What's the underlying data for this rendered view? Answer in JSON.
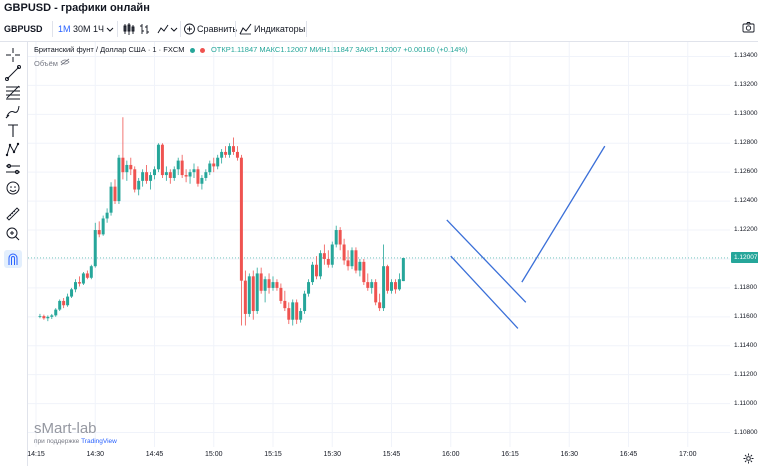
{
  "app": {
    "title": "GBPUSD - графики онлайн"
  },
  "toolbar": {
    "symbol": "GBPUSD",
    "intervals": [
      "1М",
      "30М",
      "1Ч"
    ],
    "active_interval": "1М",
    "compare_label": "Сравнить",
    "indicators_label": "Индикаторы"
  },
  "legend": {
    "instrument": "Британский фунт / Доллар США · 1 · FXCM",
    "open": "ОТКР1.11847",
    "high": "МАКС1.12007",
    "low": "МИН1.11847",
    "close": "ЗАКР1.12007",
    "change": "+0.00160 (+0.14%)",
    "volume_label": "Объём"
  },
  "branding": {
    "watermark": "sMart-lab",
    "powered_by": "при поддержке",
    "powered_brand": "TradingView"
  },
  "colors": {
    "up": "#26a69a",
    "down": "#ef5350",
    "trendline": "#3a6fd8",
    "price_tag": "#26a69a"
  },
  "chart_data": {
    "type": "candlestick",
    "x_axis": {
      "tick_labels": [
        "14:15",
        "14:30",
        "14:45",
        "15:00",
        "15:15",
        "15:30",
        "15:45",
        "16:00",
        "16:15",
        "16:30",
        "16:45",
        "17:00"
      ]
    },
    "y_axis": {
      "tick_labels": [
        "1.13400",
        "1.13200",
        "1.13000",
        "1.12800",
        "1.12600",
        "1.12400",
        "1.12200",
        "1.12000",
        "1.11800",
        "1.11600",
        "1.11400",
        "1.11200",
        "1.11000",
        "1.10800"
      ],
      "range": [
        1.107,
        1.135
      ]
    },
    "current_price": "1.12007",
    "candle_seconds": 60,
    "candles_start": "14:16",
    "candles": [
      [
        1.116,
        1.1162,
        1.1159,
        1.11605
      ],
      [
        1.11605,
        1.11615,
        1.1158,
        1.1159
      ],
      [
        1.1159,
        1.1161,
        1.1157,
        1.116
      ],
      [
        1.116,
        1.1162,
        1.11585,
        1.1161
      ],
      [
        1.1161,
        1.1166,
        1.116,
        1.1165
      ],
      [
        1.1165,
        1.1172,
        1.1164,
        1.1171
      ],
      [
        1.1171,
        1.1173,
        1.1166,
        1.1168
      ],
      [
        1.1168,
        1.1176,
        1.1167,
        1.1174
      ],
      [
        1.1174,
        1.118,
        1.1173,
        1.1179
      ],
      [
        1.1179,
        1.1186,
        1.1177,
        1.1184
      ],
      [
        1.1184,
        1.1188,
        1.1181,
        1.1183
      ],
      [
        1.1183,
        1.1191,
        1.1182,
        1.119
      ],
      [
        1.119,
        1.1192,
        1.1186,
        1.1187
      ],
      [
        1.1187,
        1.1196,
        1.1186,
        1.1195
      ],
      [
        1.1195,
        1.1225,
        1.1194,
        1.122
      ],
      [
        1.122,
        1.1226,
        1.1215,
        1.1217
      ],
      [
        1.1217,
        1.123,
        1.1216,
        1.1228
      ],
      [
        1.1228,
        1.1235,
        1.1225,
        1.1232
      ],
      [
        1.1232,
        1.1253,
        1.123,
        1.125
      ],
      [
        1.125,
        1.1255,
        1.1238,
        1.124
      ],
      [
        1.124,
        1.1272,
        1.1238,
        1.127
      ],
      [
        1.127,
        1.1298,
        1.1255,
        1.126
      ],
      [
        1.126,
        1.1268,
        1.1254,
        1.1265
      ],
      [
        1.1265,
        1.127,
        1.1258,
        1.1262
      ],
      [
        1.1262,
        1.1264,
        1.1246,
        1.1248
      ],
      [
        1.1248,
        1.1256,
        1.1244,
        1.1254
      ],
      [
        1.1254,
        1.1262,
        1.125,
        1.126
      ],
      [
        1.126,
        1.1265,
        1.1252,
        1.1254
      ],
      [
        1.1254,
        1.126,
        1.1248,
        1.1258
      ],
      [
        1.1258,
        1.1264,
        1.1255,
        1.1262
      ],
      [
        1.1262,
        1.128,
        1.126,
        1.1279
      ],
      [
        1.1279,
        1.128,
        1.1256,
        1.1258
      ],
      [
        1.1258,
        1.1264,
        1.1254,
        1.126
      ],
      [
        1.126,
        1.1262,
        1.1252,
        1.1256
      ],
      [
        1.1256,
        1.1264,
        1.1254,
        1.1262
      ],
      [
        1.1262,
        1.127,
        1.1258,
        1.1268
      ],
      [
        1.1268,
        1.1272,
        1.1256,
        1.1258
      ],
      [
        1.1258,
        1.1262,
        1.1253,
        1.1257
      ],
      [
        1.1257,
        1.1262,
        1.1252,
        1.126
      ],
      [
        1.126,
        1.1266,
        1.1256,
        1.1262
      ],
      [
        1.1262,
        1.1264,
        1.125,
        1.1252
      ],
      [
        1.1252,
        1.1258,
        1.1248,
        1.1256
      ],
      [
        1.1256,
        1.1262,
        1.1254,
        1.126
      ],
      [
        1.126,
        1.1268,
        1.1258,
        1.1266
      ],
      [
        1.1266,
        1.127,
        1.126,
        1.1264
      ],
      [
        1.1264,
        1.1272,
        1.1262,
        1.127
      ],
      [
        1.127,
        1.1276,
        1.1266,
        1.1274
      ],
      [
        1.1274,
        1.1278,
        1.127,
        1.1272
      ],
      [
        1.1272,
        1.128,
        1.127,
        1.1278
      ],
      [
        1.1278,
        1.1284,
        1.1272,
        1.1274
      ],
      [
        1.1274,
        1.1278,
        1.1268,
        1.127
      ],
      [
        1.127,
        1.1272,
        1.1154,
        1.1185
      ],
      [
        1.1185,
        1.1192,
        1.1154,
        1.1162
      ],
      [
        1.1162,
        1.119,
        1.116,
        1.1188
      ],
      [
        1.1188,
        1.1192,
        1.1158,
        1.1164
      ],
      [
        1.1164,
        1.1194,
        1.1162,
        1.119
      ],
      [
        1.119,
        1.1194,
        1.1176,
        1.1178
      ],
      [
        1.1178,
        1.1188,
        1.117,
        1.1186
      ],
      [
        1.1186,
        1.119,
        1.1176,
        1.118
      ],
      [
        1.118,
        1.1188,
        1.1178,
        1.1184
      ],
      [
        1.1184,
        1.1186,
        1.1178,
        1.118
      ],
      [
        1.118,
        1.1183,
        1.1169,
        1.1171
      ],
      [
        1.1171,
        1.1178,
        1.1164,
        1.1166
      ],
      [
        1.1166,
        1.117,
        1.1155,
        1.1158
      ],
      [
        1.1158,
        1.1172,
        1.1154,
        1.117
      ],
      [
        1.117,
        1.1172,
        1.1155,
        1.1158
      ],
      [
        1.1158,
        1.1166,
        1.1156,
        1.1164
      ],
      [
        1.1164,
        1.1178,
        1.1162,
        1.1176
      ],
      [
        1.1176,
        1.1186,
        1.1174,
        1.1184
      ],
      [
        1.1184,
        1.1198,
        1.1182,
        1.1196
      ],
      [
        1.1196,
        1.1202,
        1.1186,
        1.1188
      ],
      [
        1.1188,
        1.1206,
        1.1186,
        1.1204
      ],
      [
        1.1204,
        1.121,
        1.1196,
        1.12
      ],
      [
        1.12,
        1.1206,
        1.1194,
        1.1196
      ],
      [
        1.1196,
        1.1212,
        1.1194,
        1.121
      ],
      [
        1.121,
        1.1223,
        1.1208,
        1.122
      ],
      [
        1.122,
        1.1222,
        1.1206,
        1.121
      ],
      [
        1.121,
        1.1214,
        1.1196,
        1.1199
      ],
      [
        1.1199,
        1.1206,
        1.1192,
        1.1195
      ],
      [
        1.1195,
        1.1208,
        1.1193,
        1.1206
      ],
      [
        1.1206,
        1.1208,
        1.119,
        1.1192
      ],
      [
        1.1192,
        1.12,
        1.1188,
        1.1198
      ],
      [
        1.1198,
        1.12,
        1.1182,
        1.1184
      ],
      [
        1.1184,
        1.119,
        1.1178,
        1.118
      ],
      [
        1.118,
        1.1186,
        1.1176,
        1.1184
      ],
      [
        1.1184,
        1.1186,
        1.1168,
        1.117
      ],
      [
        1.117,
        1.1176,
        1.1164,
        1.1166
      ],
      [
        1.1166,
        1.121,
        1.1164,
        1.1195
      ],
      [
        1.1195,
        1.1196,
        1.1176,
        1.1178
      ],
      [
        1.1178,
        1.1186,
        1.1176,
        1.1184
      ],
      [
        1.1184,
        1.1186,
        1.1176,
        1.1179
      ],
      [
        1.1179,
        1.119,
        1.1178,
        1.1186
      ],
      [
        1.11847,
        1.12007,
        1.11847,
        1.12007
      ]
    ],
    "drawings": [
      {
        "type": "trend_line",
        "points": [
          [
            "15:59",
            1.1227
          ],
          [
            "16:19",
            1.117
          ]
        ]
      },
      {
        "type": "trend_line",
        "points": [
          [
            "16:00",
            1.1202
          ],
          [
            "16:17",
            1.1152
          ]
        ]
      },
      {
        "type": "trend_line",
        "points": [
          [
            "16:18",
            1.1184
          ],
          [
            "16:39",
            1.1278
          ]
        ]
      }
    ],
    "grid": true
  }
}
